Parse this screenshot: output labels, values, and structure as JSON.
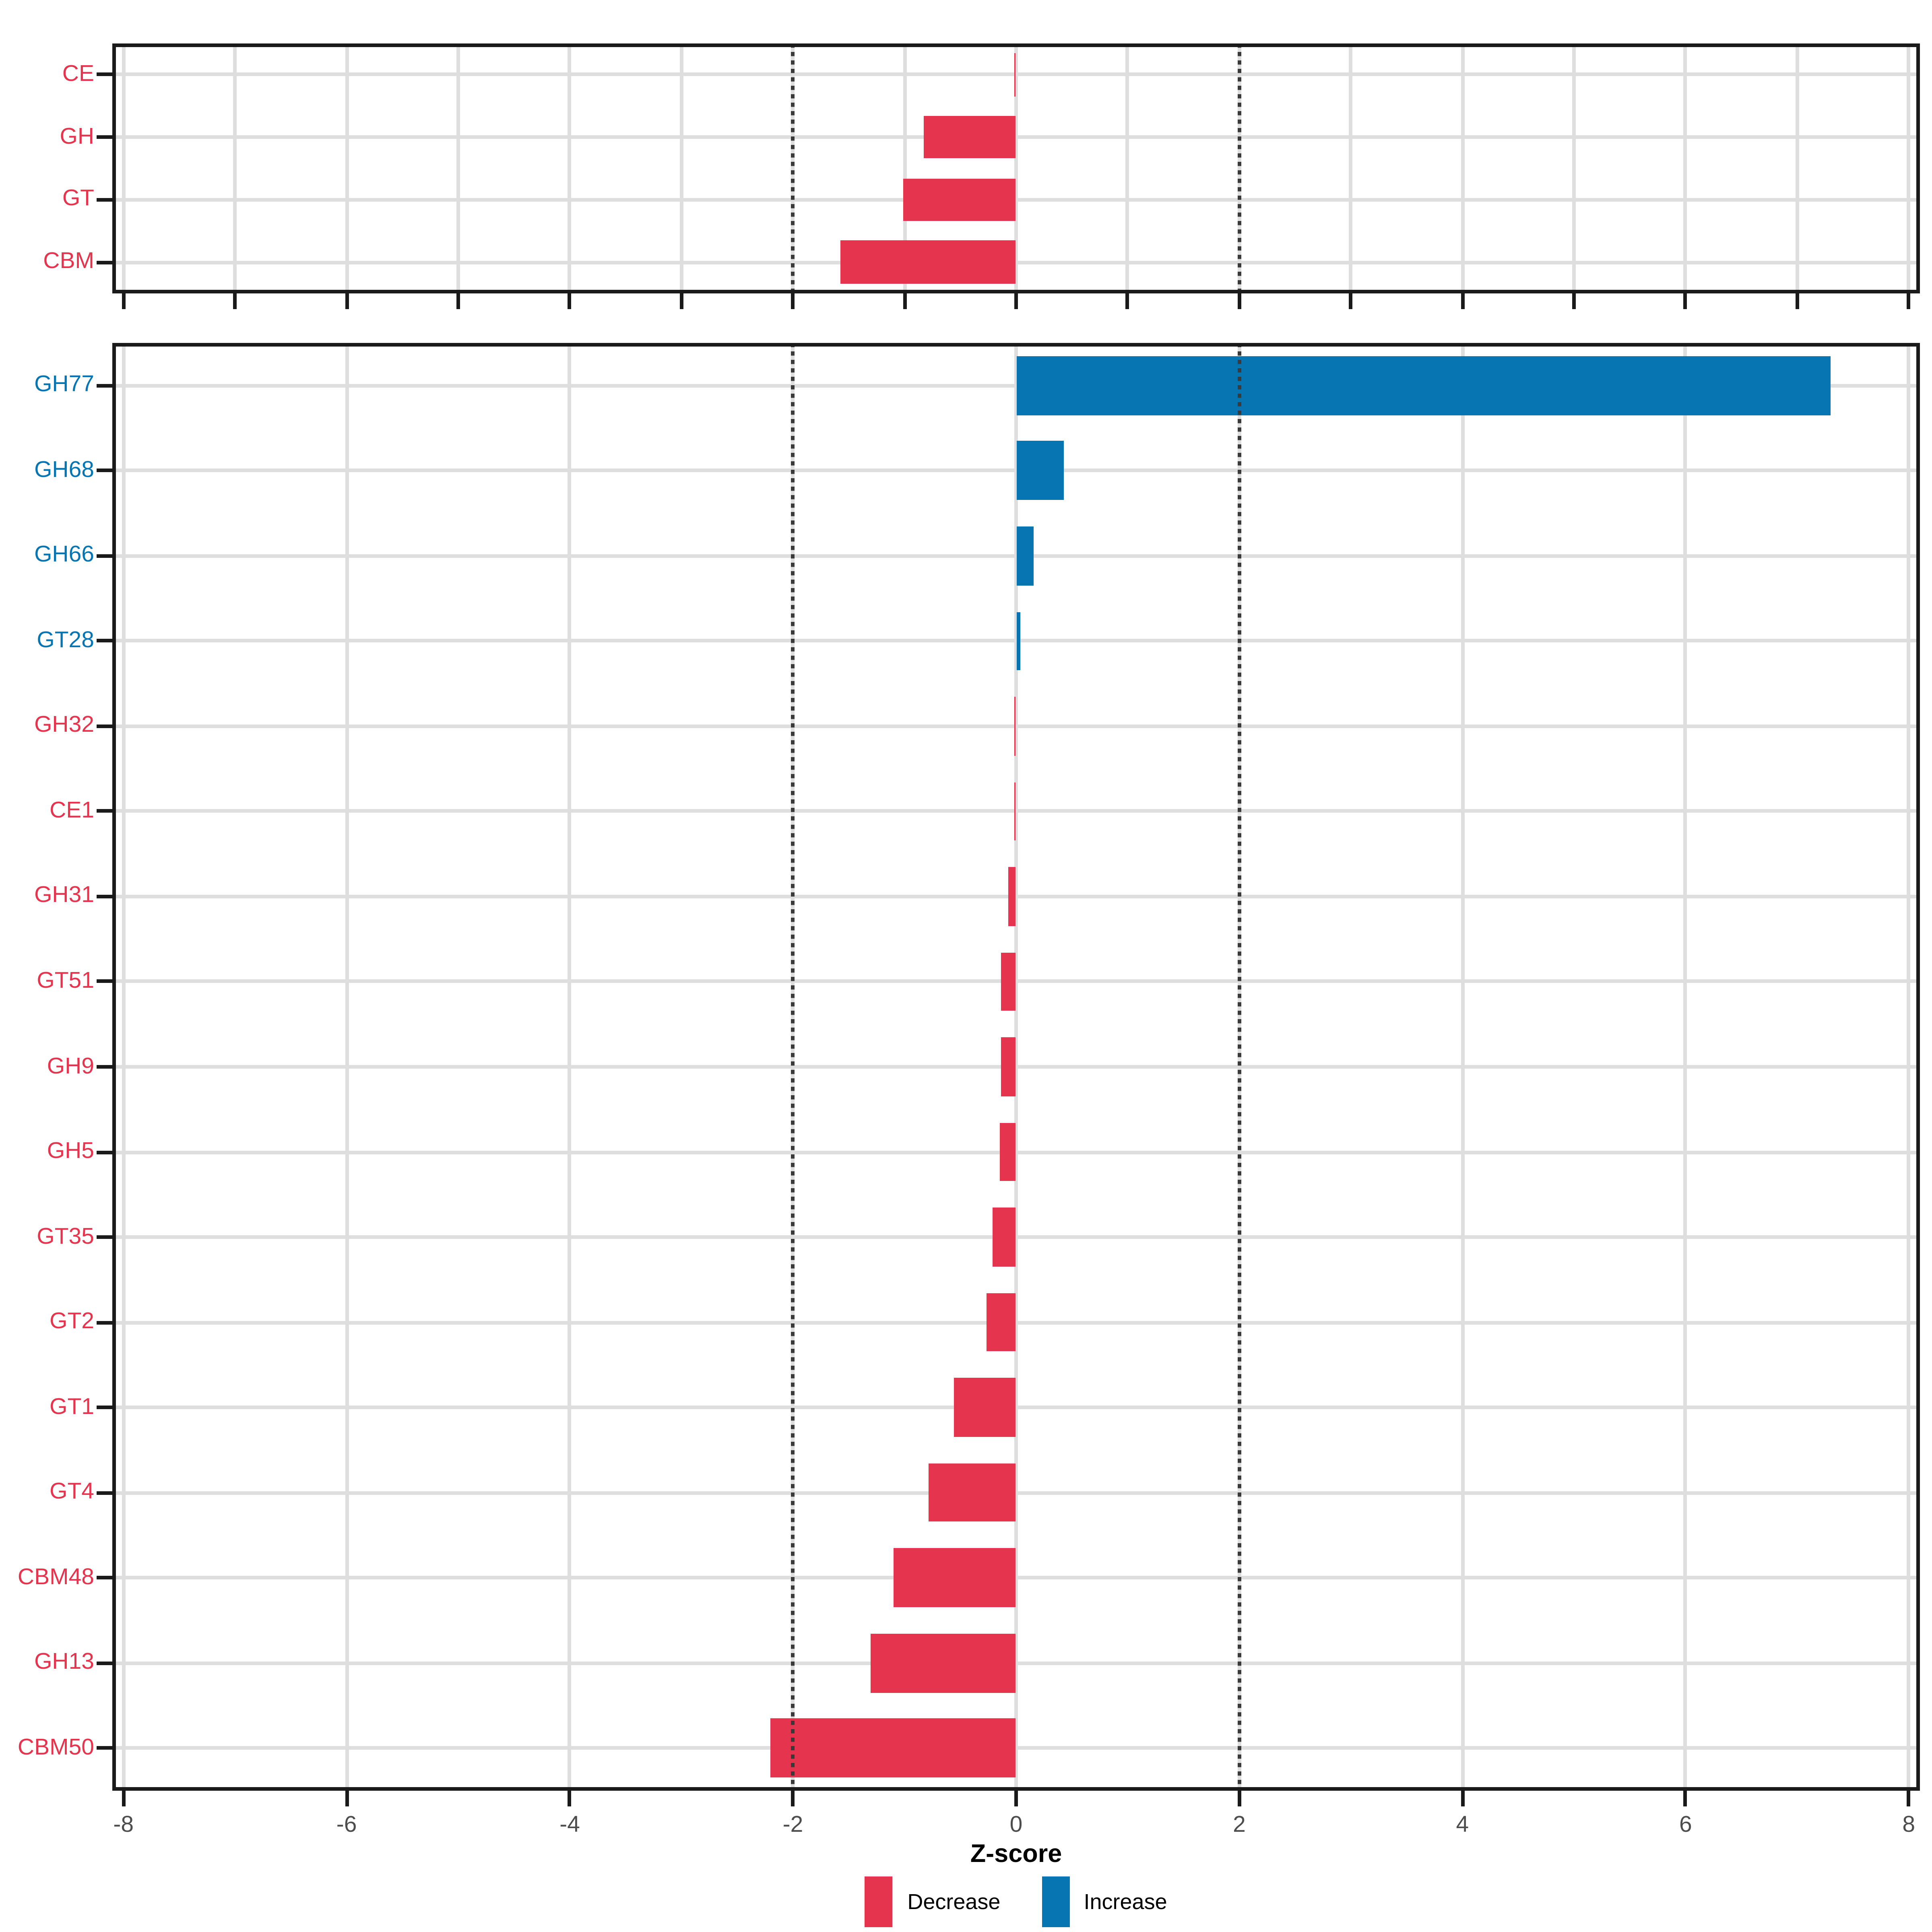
{
  "chart_data": {
    "type": "bar",
    "orientation": "horizontal",
    "title": "",
    "xlabel": "Z-score",
    "ylabel": "",
    "xlim": [
      -8.1,
      8.1
    ],
    "xticks": [
      -8,
      -6,
      -4,
      -2,
      0,
      2,
      4,
      6,
      8
    ],
    "xtick_labels": [
      "-8",
      "-6",
      "-4",
      "-2",
      "0",
      "2",
      "4",
      "6",
      "8"
    ],
    "grid": "on",
    "legend_position": "bottom-center",
    "reference_lines": {
      "dotted_at": [
        -2,
        2
      ],
      "dotted_color": "#3A3A3A"
    },
    "panels": [
      {
        "name": "cazyme-classes",
        "grid_x_every": 1,
        "xtick_every": 1,
        "show_xtick_labels": false,
        "categories": [
          "CE",
          "GH",
          "GT",
          "CBM"
        ],
        "values": [
          -0.01,
          -0.83,
          -1.01,
          -1.57
        ],
        "series": [
          "Decrease",
          "Decrease",
          "Decrease",
          "Decrease"
        ]
      },
      {
        "name": "cazyme-families",
        "grid_x_every": 2,
        "xtick_every": 2,
        "show_xtick_labels": true,
        "categories": [
          "GH77",
          "GH68",
          "GH66",
          "GT28",
          "GH32",
          "CE1",
          "GH31",
          "GT51",
          "GH9",
          "GH5",
          "GT35",
          "GT2",
          "GT1",
          "GT4",
          "CBM48",
          "GH13",
          "CBM50"
        ],
        "values": [
          7.3,
          0.43,
          0.16,
          0.04,
          -0.015,
          -0.015,
          -0.07,
          -0.13,
          -0.14,
          -0.15,
          -0.21,
          -0.26,
          -0.56,
          -0.78,
          -1.1,
          -1.3,
          -2.2
        ],
        "series": [
          "Increase",
          "Increase",
          "Increase",
          "Increase",
          "Decrease",
          "Decrease",
          "Decrease",
          "Decrease",
          "Decrease",
          "Decrease",
          "Decrease",
          "Decrease",
          "Decrease",
          "Decrease",
          "Decrease",
          "Decrease",
          "Decrease"
        ]
      }
    ],
    "series_colors": {
      "Decrease": "#E5344D",
      "Increase": "#0675B2"
    },
    "legend": [
      {
        "label": "Decrease",
        "color": "#E5344D"
      },
      {
        "label": "Increase",
        "color": "#0675B2"
      }
    ],
    "style": {
      "grid_color": "#DEDEDE",
      "border_color": "#1A1A1A",
      "tick_color": "#1A1A1A",
      "tick_label_color": "#4D4D4D",
      "background": "#FFFFFF",
      "bar_fraction": 0.69
    }
  }
}
